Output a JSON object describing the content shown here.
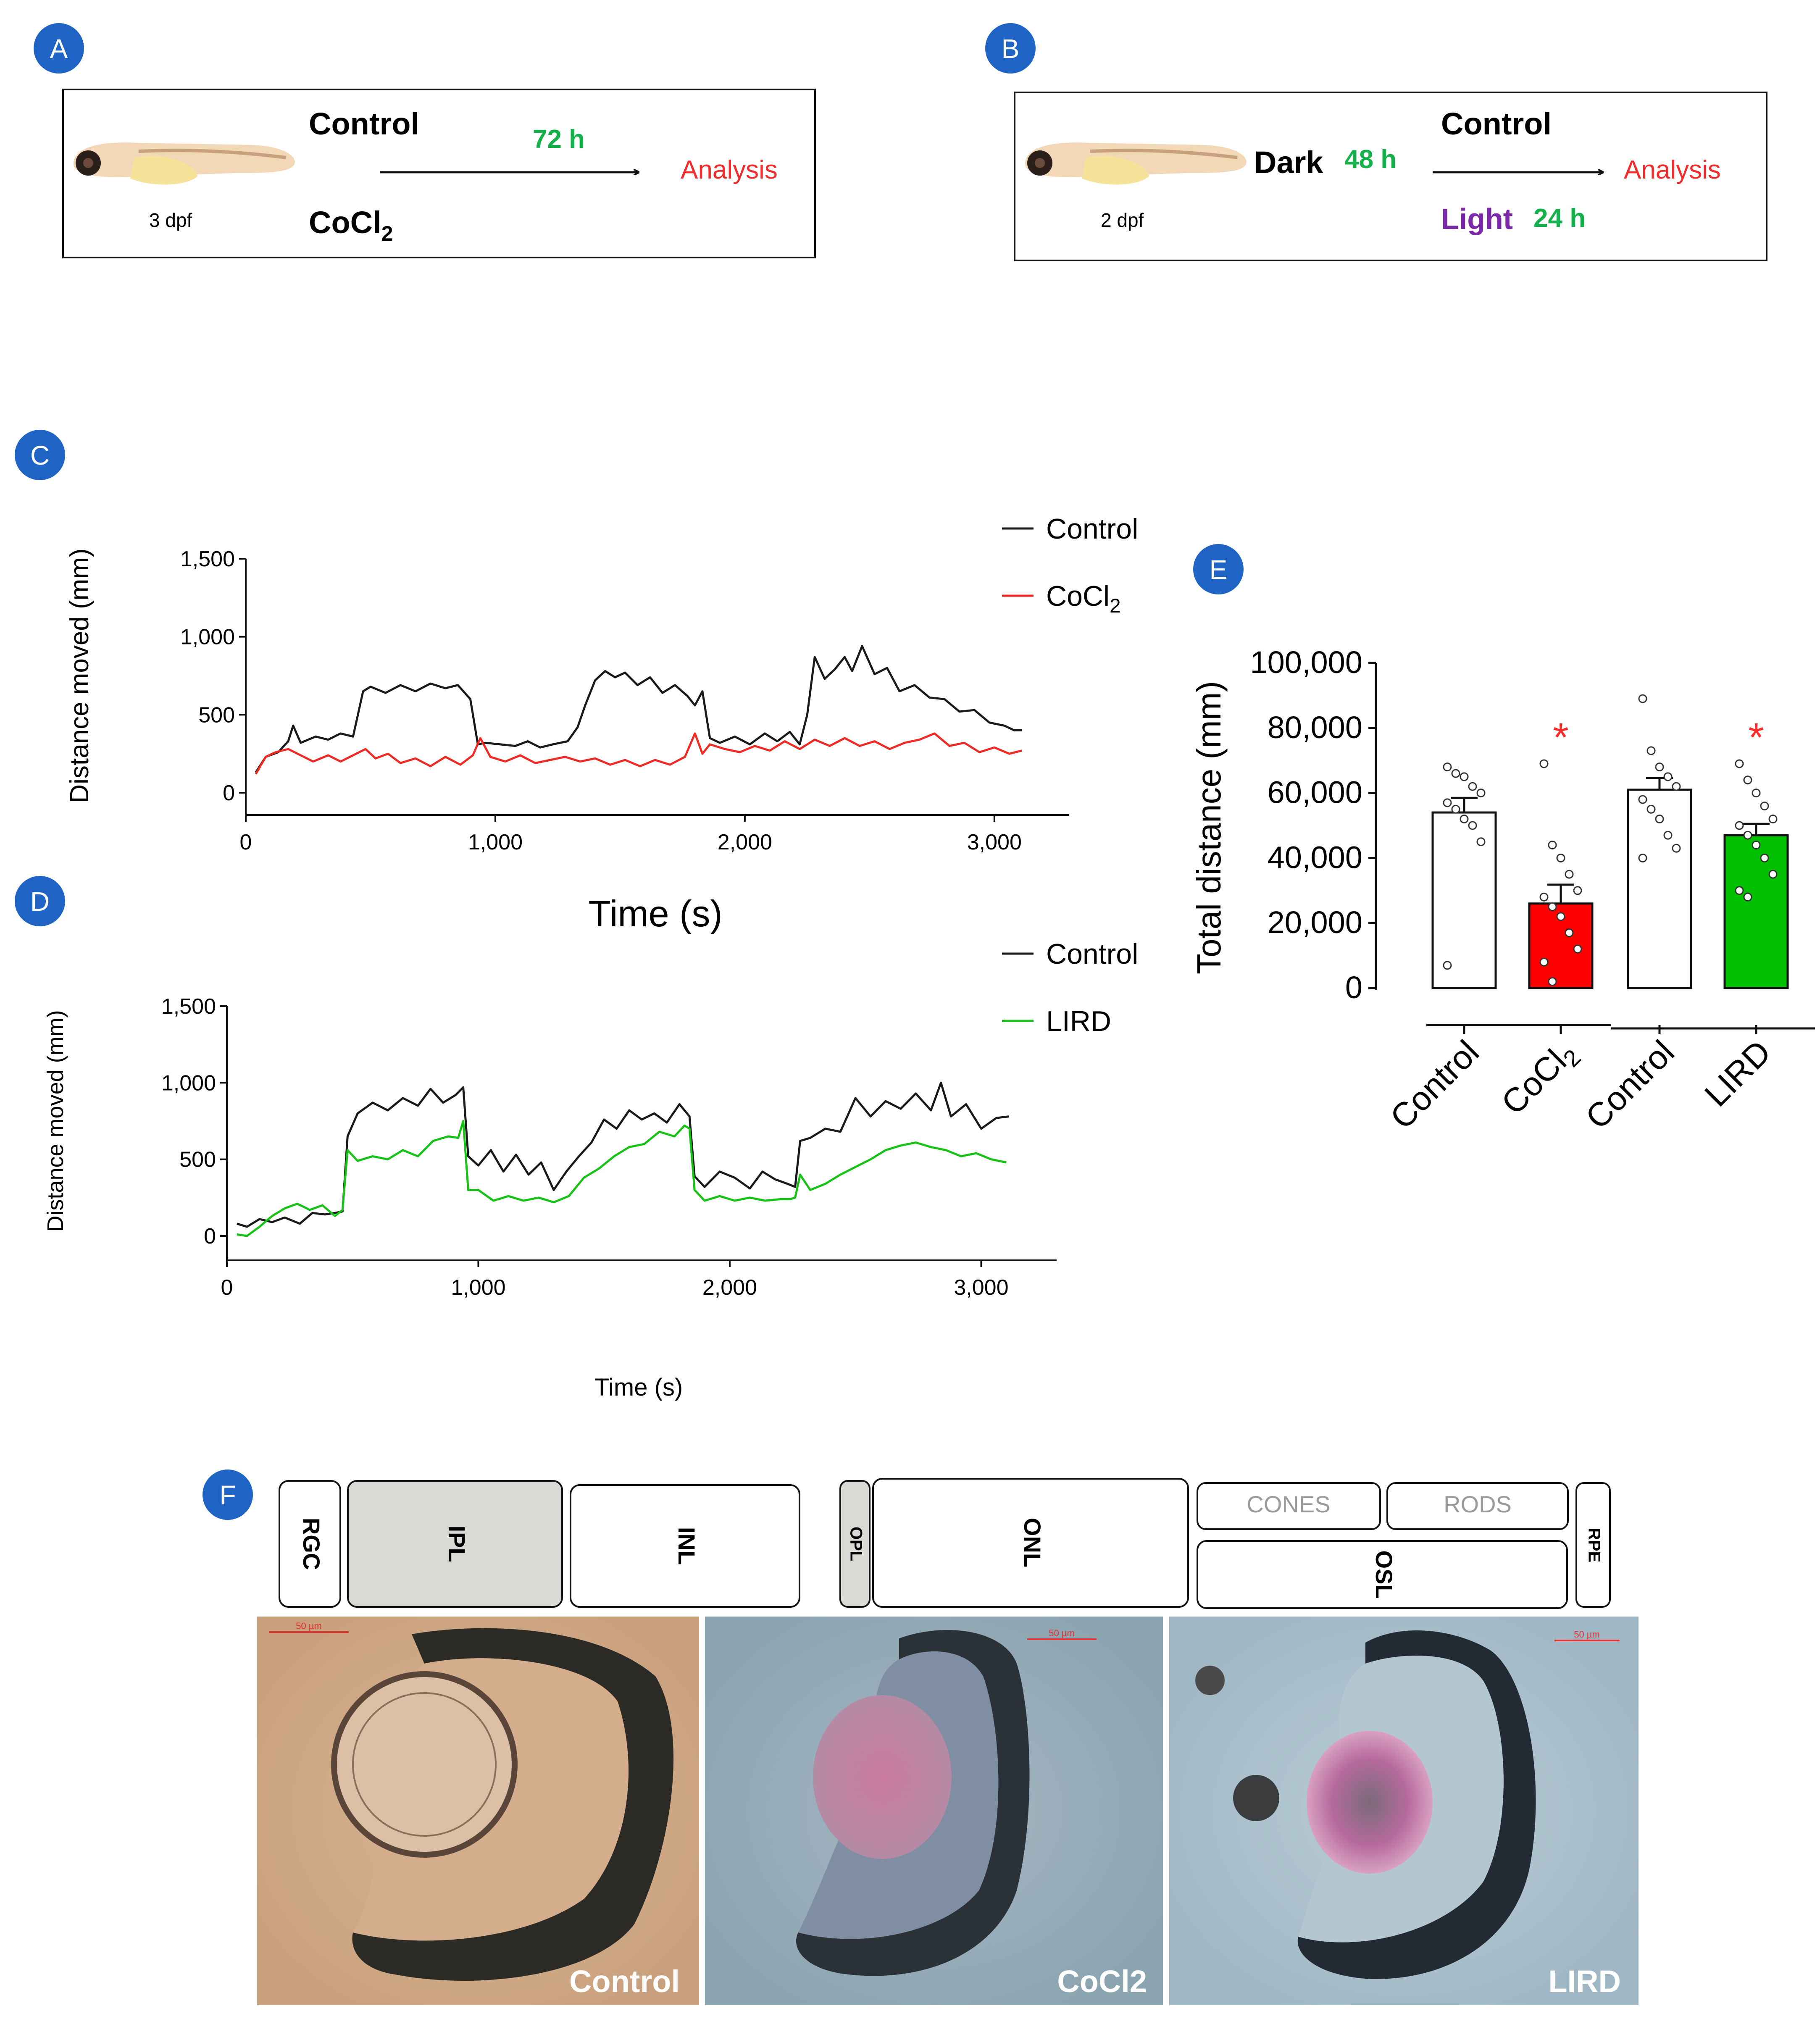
{
  "panels": {
    "A": "A",
    "B": "B",
    "C": "C",
    "D": "D",
    "E": "E",
    "F": "F"
  },
  "colors": {
    "badge": "#1f64c4",
    "control": "#1a1a1a",
    "cocl2": "#ee2a24",
    "lird": "#17c217",
    "green_text": "#14b14b",
    "red_text": "#ef2b2b",
    "purple_text": "#7a2aa8",
    "band_gray": "#d9d9d5"
  },
  "panel_a": {
    "stage": "3 dpf",
    "control": "Control",
    "treatment": "CoCl",
    "treatment_sub": "2",
    "duration": "72 h",
    "analysis": "Analysis",
    "fish_icon": "zebrafish-larva-icon"
  },
  "panel_b": {
    "stage": "2 dpf",
    "dark": "Dark",
    "dark_time": "48 h",
    "control": "Control",
    "light": "Light",
    "light_time": "24 h",
    "analysis": "Analysis",
    "fish_icon": "zebrafish-larva-icon"
  },
  "chart_data": [
    {
      "panel": "C",
      "type": "line",
      "xlabel": "Time (s)",
      "ylabel": "Distance moved (mm)",
      "xlim": [
        0,
        3300
      ],
      "ylim": [
        0,
        1500
      ],
      "xticks": [
        0,
        1000,
        2000,
        3000
      ],
      "xtick_labels": [
        "0",
        "1,000",
        "2,000",
        "3,000"
      ],
      "yticks": [
        0,
        500,
        1000,
        1500
      ],
      "ytick_labels": [
        "0",
        "500",
        "1,000",
        "1,500"
      ],
      "legend": [
        {
          "label": "Control",
          "sub": ""
        },
        {
          "label": "CoCl",
          "sub": "2"
        }
      ],
      "series": [
        {
          "name": "Control",
          "color": "#1a1a1a",
          "x": [
            40,
            80,
            130,
            170,
            190,
            220,
            280,
            330,
            380,
            430,
            470,
            500,
            560,
            620,
            680,
            740,
            800,
            850,
            900,
            930,
            960,
            1020,
            1080,
            1130,
            1180,
            1230,
            1290,
            1330,
            1360,
            1400,
            1440,
            1480,
            1520,
            1570,
            1620,
            1670,
            1720,
            1770,
            1800,
            1830,
            1860,
            1900,
            1960,
            2020,
            2080,
            2130,
            2180,
            2220,
            2250,
            2280,
            2320,
            2360,
            2400,
            2430,
            2470,
            2520,
            2570,
            2620,
            2680,
            2740,
            2800,
            2860,
            2920,
            2980,
            3040,
            3080,
            3110
          ],
          "y": [
            130,
            230,
            260,
            330,
            430,
            320,
            360,
            340,
            380,
            360,
            650,
            680,
            640,
            690,
            650,
            700,
            670,
            690,
            600,
            310,
            320,
            310,
            300,
            330,
            290,
            310,
            330,
            420,
            560,
            720,
            780,
            740,
            770,
            690,
            740,
            640,
            690,
            620,
            560,
            650,
            350,
            320,
            360,
            310,
            380,
            330,
            390,
            310,
            500,
            870,
            730,
            790,
            870,
            780,
            940,
            760,
            800,
            650,
            690,
            610,
            600,
            520,
            530,
            450,
            430,
            400,
            400
          ]
        },
        {
          "name": "CoCl2",
          "color": "#ee2a24",
          "x": [
            40,
            80,
            120,
            170,
            220,
            270,
            330,
            380,
            430,
            480,
            520,
            570,
            620,
            680,
            740,
            800,
            860,
            910,
            940,
            980,
            1040,
            1100,
            1160,
            1220,
            1280,
            1340,
            1400,
            1460,
            1520,
            1580,
            1640,
            1700,
            1760,
            1800,
            1830,
            1860,
            1920,
            1980,
            2040,
            2100,
            2160,
            2220,
            2280,
            2340,
            2400,
            2460,
            2520,
            2580,
            2640,
            2700,
            2760,
            2820,
            2880,
            2940,
            3000,
            3060,
            3110
          ],
          "y": [
            120,
            230,
            260,
            280,
            240,
            200,
            240,
            200,
            240,
            280,
            220,
            250,
            190,
            220,
            170,
            230,
            180,
            240,
            350,
            230,
            200,
            240,
            190,
            210,
            230,
            200,
            220,
            180,
            210,
            170,
            210,
            180,
            230,
            380,
            250,
            310,
            280,
            260,
            300,
            270,
            330,
            280,
            340,
            300,
            350,
            300,
            330,
            280,
            320,
            340,
            380,
            300,
            320,
            260,
            290,
            250,
            270
          ]
        }
      ]
    },
    {
      "panel": "D",
      "type": "line",
      "xlabel": "Time (s)",
      "ylabel": "Distance moved (mm)",
      "xlim": [
        0,
        3300
      ],
      "ylim": [
        0,
        1500
      ],
      "xticks": [
        0,
        1000,
        2000,
        3000
      ],
      "xtick_labels": [
        "0",
        "1,000",
        "2,000",
        "3,000"
      ],
      "yticks": [
        0,
        500,
        1000,
        1500
      ],
      "ytick_labels": [
        "0",
        "500",
        "1,000",
        "1,500"
      ],
      "legend": [
        {
          "label": "Control",
          "sub": ""
        },
        {
          "label": "LIRD",
          "sub": ""
        }
      ],
      "series": [
        {
          "name": "Control",
          "color": "#1a1a1a",
          "x": [
            40,
            80,
            130,
            180,
            230,
            290,
            340,
            390,
            430,
            460,
            480,
            520,
            580,
            640,
            700,
            760,
            810,
            860,
            910,
            940,
            960,
            1000,
            1050,
            1100,
            1150,
            1200,
            1250,
            1300,
            1350,
            1400,
            1450,
            1500,
            1550,
            1600,
            1650,
            1700,
            1750,
            1800,
            1840,
            1860,
            1900,
            1960,
            2020,
            2080,
            2130,
            2180,
            2230,
            2260,
            2280,
            2320,
            2380,
            2440,
            2500,
            2560,
            2620,
            2680,
            2740,
            2800,
            2840,
            2880,
            2940,
            3000,
            3060,
            3110
          ],
          "y": [
            80,
            60,
            110,
            90,
            120,
            80,
            150,
            140,
            150,
            160,
            650,
            800,
            870,
            820,
            900,
            850,
            960,
            870,
            920,
            970,
            520,
            460,
            560,
            420,
            530,
            400,
            480,
            300,
            420,
            520,
            610,
            760,
            700,
            820,
            760,
            800,
            740,
            860,
            780,
            390,
            320,
            420,
            380,
            310,
            420,
            370,
            340,
            320,
            620,
            640,
            700,
            680,
            900,
            780,
            880,
            830,
            930,
            820,
            1000,
            780,
            860,
            700,
            770,
            780
          ]
        },
        {
          "name": "LIRD",
          "color": "#17c217",
          "x": [
            40,
            80,
            130,
            180,
            230,
            280,
            330,
            380,
            430,
            460,
            480,
            520,
            580,
            640,
            700,
            760,
            820,
            880,
            920,
            940,
            960,
            1000,
            1060,
            1120,
            1180,
            1240,
            1300,
            1360,
            1420,
            1480,
            1540,
            1600,
            1660,
            1720,
            1780,
            1820,
            1840,
            1860,
            1900,
            1960,
            2020,
            2080,
            2140,
            2200,
            2240,
            2260,
            2280,
            2320,
            2380,
            2440,
            2500,
            2560,
            2620,
            2680,
            2740,
            2800,
            2860,
            2920,
            2980,
            3040,
            3100
          ],
          "y": [
            10,
            0,
            60,
            130,
            180,
            210,
            170,
            200,
            130,
            170,
            560,
            490,
            520,
            500,
            560,
            520,
            620,
            650,
            640,
            750,
            300,
            300,
            230,
            260,
            230,
            250,
            220,
            260,
            380,
            440,
            520,
            580,
            600,
            680,
            650,
            720,
            700,
            300,
            230,
            260,
            230,
            250,
            230,
            240,
            240,
            250,
            400,
            300,
            340,
            400,
            450,
            500,
            560,
            590,
            610,
            580,
            560,
            520,
            540,
            500,
            480
          ]
        }
      ]
    },
    {
      "panel": "E",
      "type": "bar",
      "ylabel": "Total distance (mm)",
      "ylim": [
        0,
        100000
      ],
      "yticks": [
        0,
        20000,
        40000,
        60000,
        80000,
        100000
      ],
      "ytick_labels": [
        "0",
        "20,000",
        "40,000",
        "60,000",
        "80,000",
        "100,000"
      ],
      "categories": [
        {
          "label": "Control",
          "sub": ""
        },
        {
          "label": "CoCl",
          "sub": "2"
        },
        {
          "label": "Control",
          "sub": ""
        },
        {
          "label": "LIRD",
          "sub": ""
        }
      ],
      "values": [
        54000,
        26000,
        61000,
        47000
      ],
      "sem": [
        4500,
        5800,
        3600,
        3500
      ],
      "bar_colors": [
        "#ffffff",
        "#ff0000",
        "#ffffff",
        "#00c000"
      ],
      "significance": [
        "",
        "*",
        "",
        "*"
      ],
      "points": [
        [
          68000,
          66000,
          65000,
          62000,
          60000,
          57000,
          55000,
          52000,
          50000,
          45000,
          7000
        ],
        [
          69000,
          44000,
          40000,
          35000,
          30000,
          28000,
          25000,
          22000,
          17000,
          12000,
          8000,
          2000
        ],
        [
          89000,
          73000,
          68000,
          65000,
          62000,
          58000,
          55000,
          52000,
          47000,
          43000,
          40000
        ],
        [
          69000,
          64000,
          60000,
          56000,
          52000,
          50000,
          47000,
          44000,
          40000,
          35000,
          30000,
          28000
        ]
      ]
    }
  ],
  "panel_f": {
    "layers": [
      "RGC",
      "IPL",
      "INL",
      "OPL",
      "ONL",
      "CONES",
      "RODS",
      "OSL",
      "RPE"
    ],
    "images": [
      {
        "label": "Control",
        "scale": "50 µm"
      },
      {
        "label": "CoCl2",
        "scale": "50 µm"
      },
      {
        "label": "LIRD",
        "scale": "50 µm"
      }
    ]
  }
}
